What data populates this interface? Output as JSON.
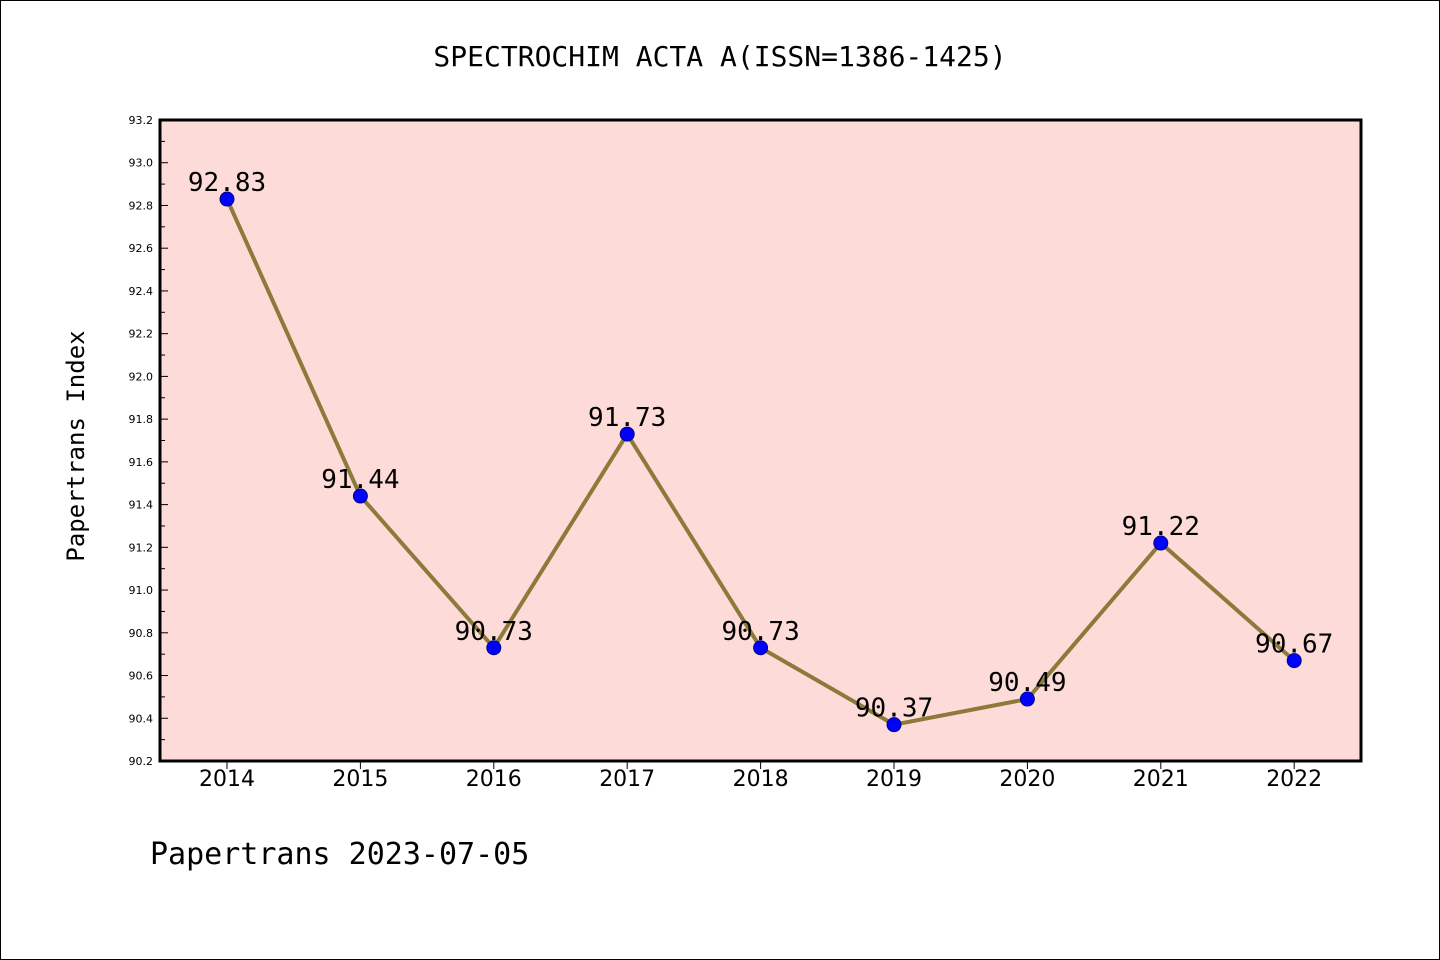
{
  "chart_data": {
    "type": "line",
    "title": "SPECTROCHIM ACTA A(ISSN=1386-1425)",
    "xlabel": "",
    "ylabel": "Papertrans Index",
    "categories": [
      "2014",
      "2015",
      "2016",
      "2017",
      "2018",
      "2019",
      "2020",
      "2021",
      "2022"
    ],
    "series": [
      {
        "values": [
          92.83,
          91.44,
          90.73,
          91.73,
          90.73,
          90.37,
          90.49,
          91.22,
          90.67
        ]
      }
    ],
    "data_labels": [
      "92.83",
      "91.44",
      "90.73",
      "91.73",
      "90.73",
      "90.37",
      "90.49",
      "91.22",
      "90.67"
    ],
    "ylim": [
      90.2,
      93.2
    ],
    "yticks": [
      "90.2",
      "90.4",
      "90.6",
      "90.8",
      "91.0",
      "91.2",
      "91.4",
      "91.6",
      "91.8",
      "92.0",
      "92.2",
      "92.4",
      "92.6",
      "92.8",
      "93.0",
      "93.2"
    ],
    "grid": false,
    "colors": {
      "plot_background": "#fddbd8",
      "line": "#8b7a3a",
      "marker": "#0000ff"
    }
  },
  "footer": {
    "text": "Papertrans 2023-07-05"
  }
}
